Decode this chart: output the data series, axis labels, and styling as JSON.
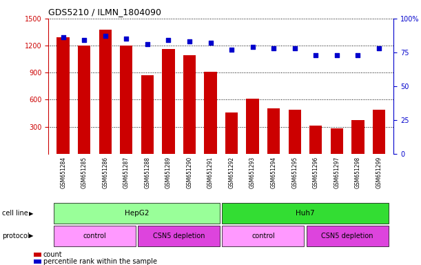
{
  "title": "GDS5210 / ILMN_1804090",
  "samples": [
    "GSM651284",
    "GSM651285",
    "GSM651286",
    "GSM651287",
    "GSM651288",
    "GSM651289",
    "GSM651290",
    "GSM651291",
    "GSM651292",
    "GSM651293",
    "GSM651294",
    "GSM651295",
    "GSM651296",
    "GSM651297",
    "GSM651298",
    "GSM651299"
  ],
  "counts": [
    1290,
    1200,
    1380,
    1200,
    870,
    1160,
    1090,
    910,
    460,
    610,
    500,
    490,
    310,
    280,
    370,
    490
  ],
  "percentile_ranks": [
    86,
    84,
    87,
    85,
    81,
    84,
    83,
    82,
    77,
    79,
    78,
    78,
    73,
    73,
    73,
    78
  ],
  "bar_color": "#cc0000",
  "dot_color": "#0000cc",
  "ylim_left": [
    0,
    1500
  ],
  "ylim_right": [
    0,
    100
  ],
  "yticks_left": [
    300,
    600,
    900,
    1200,
    1500
  ],
  "yticks_right": [
    0,
    25,
    50,
    75,
    100
  ],
  "cell_line_groups": [
    {
      "label": "HepG2",
      "start": 0,
      "end": 7,
      "color": "#99ff99"
    },
    {
      "label": "Huh7",
      "start": 8,
      "end": 15,
      "color": "#33dd33"
    }
  ],
  "protocol_groups": [
    {
      "label": "control",
      "start": 0,
      "end": 3,
      "color": "#ff99ff"
    },
    {
      "label": "CSN5 depletion",
      "start": 4,
      "end": 7,
      "color": "#dd44dd"
    },
    {
      "label": "control",
      "start": 8,
      "end": 11,
      "color": "#ff99ff"
    },
    {
      "label": "CSN5 depletion",
      "start": 12,
      "end": 15,
      "color": "#dd44dd"
    }
  ],
  "cell_line_label": "cell line",
  "protocol_label": "protocol",
  "legend_count_label": "count",
  "legend_pct_label": "percentile rank within the sample",
  "left_axis_color": "#cc0000",
  "right_axis_color": "#0000cc"
}
